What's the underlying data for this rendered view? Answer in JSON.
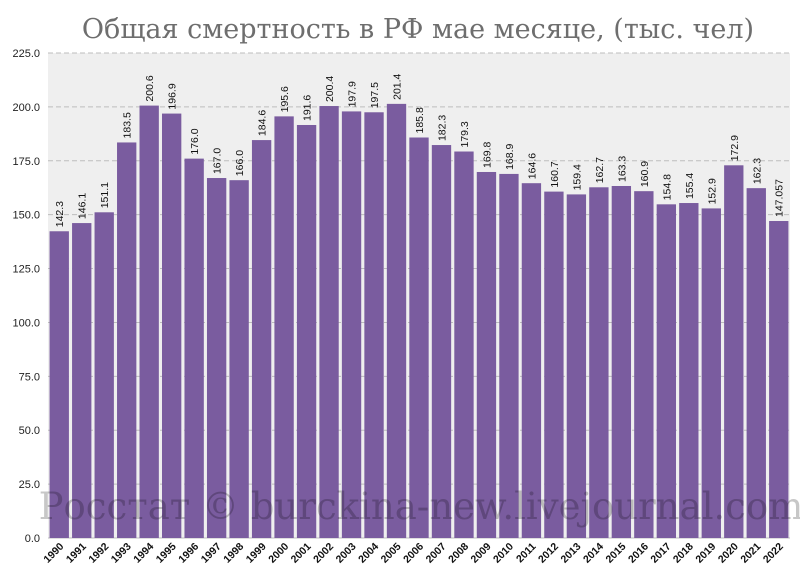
{
  "watermark": "Росстат © burckina-new.livejournal.com",
  "colors": {
    "bar": "#7a5c9f",
    "plot_background": "#efefef",
    "grid": "#bdbdbd",
    "title": "#6e6e6e"
  },
  "chart_data": {
    "type": "bar",
    "title": "Общая смертность в РФ мае месяце, (тыс. чел)",
    "xlabel": "",
    "ylabel": "",
    "ylim": [
      0,
      225
    ],
    "yticks": [
      "0.0",
      "25.0",
      "50.0",
      "75.0",
      "100.0",
      "125.0",
      "150.0",
      "175.0",
      "200.0",
      "225.0"
    ],
    "grid": "horizontal dashed",
    "legend": "none",
    "categories": [
      "1990",
      "1991",
      "1992",
      "1993",
      "1994",
      "1995",
      "1996",
      "1997",
      "1998",
      "1999",
      "2000",
      "2001",
      "2002",
      "2003",
      "2004",
      "2005",
      "2006",
      "2007",
      "2008",
      "2009",
      "2010",
      "2011",
      "2012",
      "2013",
      "2014",
      "2015",
      "2016",
      "2017",
      "2018",
      "2019",
      "2020",
      "2021",
      "2022"
    ],
    "values": [
      142.3,
      146.1,
      151.1,
      183.5,
      200.6,
      196.9,
      176.0,
      167.0,
      166.0,
      184.6,
      195.6,
      191.6,
      200.4,
      197.9,
      197.5,
      201.4,
      185.8,
      182.3,
      179.3,
      169.8,
      168.9,
      164.6,
      160.7,
      159.4,
      162.7,
      163.3,
      160.9,
      154.8,
      155.4,
      152.9,
      172.9,
      162.3,
      147.057
    ],
    "labels": [
      "142.3",
      "146.1",
      "151.1",
      "183.5",
      "200.6",
      "196.9",
      "176.0",
      "167.0",
      "166.0",
      "184.6",
      "195.6",
      "191.6",
      "200.4",
      "197.9",
      "197.5",
      "201.4",
      "185.8",
      "182.3",
      "179.3",
      "169.8",
      "168.9",
      "164.6",
      "160.7",
      "159.4",
      "162.7",
      "163.3",
      "160.9",
      "154.8",
      "155.4",
      "152.9",
      "172.9",
      "162.3",
      "147.057"
    ]
  }
}
